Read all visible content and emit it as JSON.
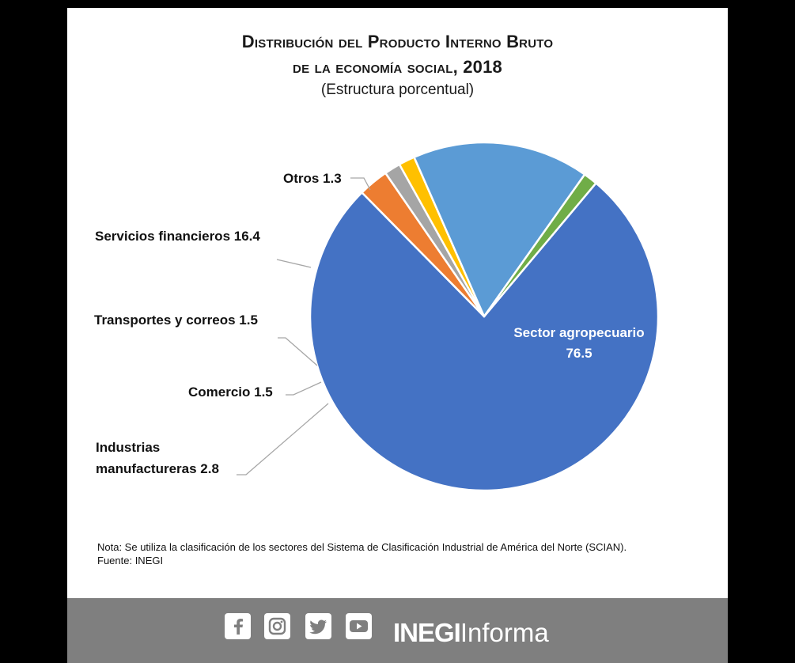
{
  "chart_data": {
    "type": "pie",
    "title_line1": "Distribución del Producto Interno Bruto",
    "title_line2": "de la economía social, 2018",
    "subtitle": "(Estructura porcentual)",
    "slices": [
      {
        "label": "Sector agropecuario",
        "value": 76.5,
        "color": "#4472c4"
      },
      {
        "label": "Industrias manufactureras",
        "value": 2.8,
        "color": "#ed7d31"
      },
      {
        "label": "Comercio",
        "value": 1.5,
        "color": "#a5a5a5"
      },
      {
        "label": "Transportes y correos",
        "value": 1.5,
        "color": "#ffc000"
      },
      {
        "label": "Servicios financieros",
        "value": 16.4,
        "color": "#5b9bd5"
      },
      {
        "label": "Otros",
        "value": 1.3,
        "color": "#70ad47"
      }
    ],
    "labels": {
      "agro_line1": "Sector agropecuario",
      "agro_line2": "76.5",
      "industrias_line1": "Industrias",
      "industrias_line2": "manufactureras 2.8",
      "comercio": "Comercio 1.5",
      "transportes": "Transportes y correos 1.5",
      "servicios": "Servicios financieros 16.4",
      "otros": "Otros 1.3"
    }
  },
  "note": "Nota: Se utiliza la clasificación de los sectores del Sistema de Clasificación Industrial de América del Norte (SCIAN).",
  "source": "Fuente: INEGI",
  "footer": {
    "icons": [
      "facebook-icon",
      "instagram-icon",
      "twitter-icon",
      "youtube-icon"
    ],
    "brand_bold": "INEGI",
    "brand_regular": "Informa",
    "bg_color": "#7f7f7f"
  }
}
